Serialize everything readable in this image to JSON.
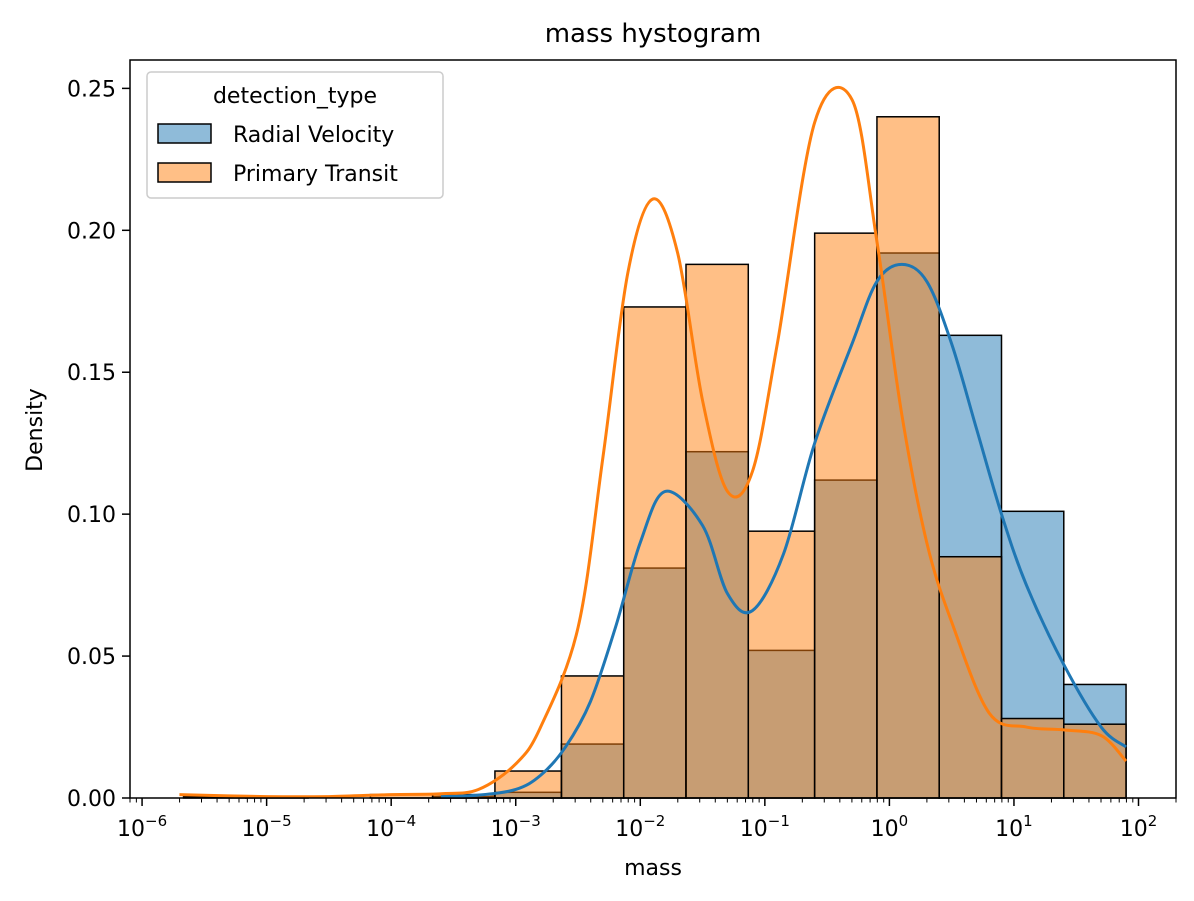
{
  "chart_data": {
    "type": "bar",
    "title": "mass hystogram",
    "xlabel": "mass",
    "ylabel": "Density",
    "xscale": "log",
    "xlim": [
      8e-07,
      200
    ],
    "ylim": [
      0,
      0.26
    ],
    "grid": false,
    "legend": {
      "title": "detection_type",
      "placement": "top-left"
    },
    "bin_edges_log10": [
      -5.667,
      -5.167,
      -4.667,
      -4.167,
      -3.667,
      -3.167,
      -2.633,
      -2.133,
      -1.633,
      -1.133,
      -0.6,
      -0.1,
      0.4,
      0.9,
      1.4,
      1.9
    ],
    "x_ticks": [
      {
        "value": 1e-06,
        "base": "10",
        "exp": "−6"
      },
      {
        "value": 1e-05,
        "base": "10",
        "exp": "−5"
      },
      {
        "value": 0.0001,
        "base": "10",
        "exp": "−4"
      },
      {
        "value": 0.001,
        "base": "10",
        "exp": "−3"
      },
      {
        "value": 0.01,
        "base": "10",
        "exp": "−2"
      },
      {
        "value": 0.1,
        "base": "10",
        "exp": "−1"
      },
      {
        "value": 1,
        "base": "10",
        "exp": "0"
      },
      {
        "value": 10,
        "base": "10",
        "exp": "1"
      },
      {
        "value": 100,
        "base": "10",
        "exp": "2"
      }
    ],
    "y_ticks": [
      {
        "value": 0.0,
        "label": "0.00"
      },
      {
        "value": 0.05,
        "label": "0.05"
      },
      {
        "value": 0.1,
        "label": "0.10"
      },
      {
        "value": 0.15,
        "label": "0.15"
      },
      {
        "value": 0.2,
        "label": "0.20"
      },
      {
        "value": 0.25,
        "label": "0.25"
      }
    ],
    "series": [
      {
        "name": "Radial Velocity",
        "color": "#1f77b4",
        "values": [
          0.0,
          0.0,
          0.0,
          0.0,
          0.0005,
          0.002,
          0.019,
          0.081,
          0.122,
          0.052,
          0.112,
          0.192,
          0.163,
          0.101,
          0.04
        ],
        "kde_x_log10": [
          -3.6,
          -3.3,
          -3.0,
          -2.8,
          -2.6,
          -2.4,
          -2.2,
          -2.0,
          -1.8,
          -1.5,
          -1.3,
          -1.1,
          -0.85,
          -0.6,
          -0.3,
          -0.1,
          0.1,
          0.3,
          0.5,
          0.7,
          0.9,
          1.1,
          1.4,
          1.7,
          1.9
        ],
        "kde_y": [
          0.0005,
          0.001,
          0.003,
          0.008,
          0.018,
          0.034,
          0.06,
          0.09,
          0.108,
          0.096,
          0.072,
          0.066,
          0.086,
          0.125,
          0.16,
          0.182,
          0.188,
          0.182,
          0.16,
          0.13,
          0.1,
          0.075,
          0.047,
          0.025,
          0.018
        ]
      },
      {
        "name": "Primary Transit",
        "color": "#ff7f0e",
        "values": [
          0.0005,
          0.0003,
          0.0,
          0.0012,
          0.0012,
          0.0095,
          0.043,
          0.173,
          0.188,
          0.094,
          0.199,
          0.24,
          0.085,
          0.028,
          0.026
        ],
        "kde_x_log10": [
          -5.7,
          -5.0,
          -4.5,
          -4.0,
          -3.6,
          -3.3,
          -3.0,
          -2.8,
          -2.5,
          -2.3,
          -2.1,
          -1.9,
          -1.7,
          -1.5,
          -1.3,
          -1.1,
          -0.9,
          -0.6,
          -0.3,
          -0.1,
          0.1,
          0.3,
          0.5,
          0.8,
          1.1,
          1.4,
          1.7,
          1.9
        ],
        "kde_y": [
          0.0012,
          0.0005,
          0.0005,
          0.0012,
          0.0015,
          0.003,
          0.012,
          0.025,
          0.06,
          0.12,
          0.185,
          0.211,
          0.192,
          0.14,
          0.108,
          0.115,
          0.16,
          0.238,
          0.246,
          0.196,
          0.135,
          0.09,
          0.062,
          0.03,
          0.025,
          0.024,
          0.022,
          0.013
        ]
      }
    ]
  }
}
